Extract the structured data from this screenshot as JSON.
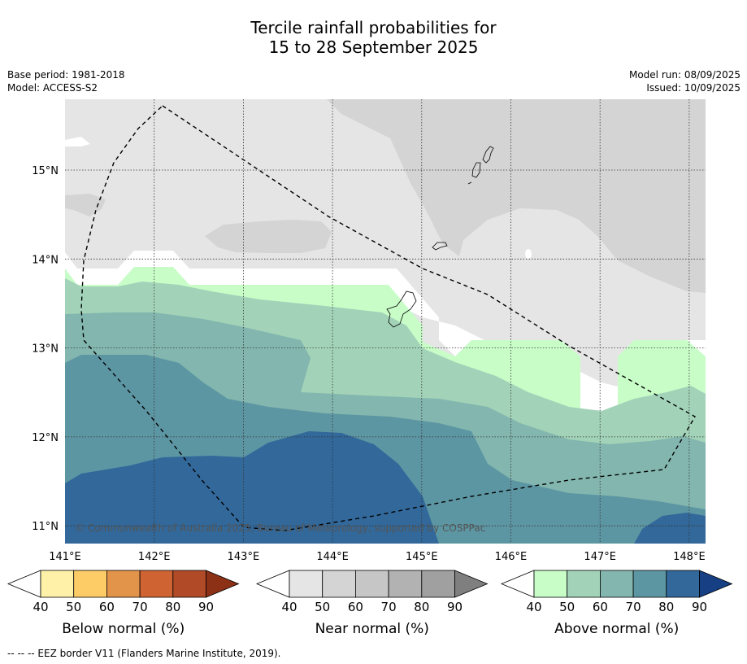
{
  "title_line1": "Tercile rainfall probabilities for",
  "title_line2": "15 to 28 September 2025",
  "meta_left": [
    "Base period: 1981-2018",
    "Model: ACCESS-S2"
  ],
  "meta_right": [
    "Model run: 08/09/2025",
    "Issued: 10/09/2025"
  ],
  "map": {
    "lon_ticks": [
      "141°E",
      "142°E",
      "143°E",
      "144°E",
      "145°E",
      "146°E",
      "147°E",
      "148°E"
    ],
    "lat_ticks": [
      "15°N",
      "14°N",
      "13°N",
      "12°N",
      "11°N"
    ],
    "lon_range": [
      141.0,
      148.2
    ],
    "lat_range": [
      10.8,
      15.8
    ],
    "copyright": "© Commonwealth of Australia 2025, Bureau of Meteorology, supported by COSPPac"
  },
  "colors": {
    "near": [
      "#e5e5e5",
      "#d4d4d4",
      "#c6c6c6",
      "#b2b2b2",
      "#a0a0a0",
      "#7f7f7f"
    ],
    "above": [
      "#c8fdc8",
      "#a2d3b8",
      "#82b6ae",
      "#5d96a3",
      "#32689a",
      "#163f84"
    ],
    "below": [
      "#fff2a8",
      "#fecc66",
      "#e3944b",
      "#cf6331",
      "#b04a27",
      "#8c3016"
    ]
  },
  "legends": [
    {
      "name": "below",
      "caption": "Below normal (%)",
      "ticks": [
        "40",
        "50",
        "60",
        "70",
        "80",
        "90"
      ]
    },
    {
      "name": "near",
      "caption": "Near normal (%)",
      "ticks": [
        "40",
        "50",
        "60",
        "70",
        "80",
        "90"
      ]
    },
    {
      "name": "above",
      "caption": "Above normal (%)",
      "ticks": [
        "40",
        "50",
        "60",
        "70",
        "80",
        "90"
      ]
    }
  ],
  "footnote": "--  --  -- EEZ border V11 (Flanders Marine Institute, 2019)."
}
